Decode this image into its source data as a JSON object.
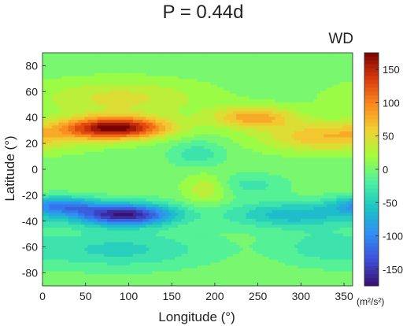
{
  "chart_data": {
    "type": "heatmap",
    "title": "P = 0.44d",
    "panel_label": "WD",
    "xlabel": "Longitude (°)",
    "ylabel": "Latitude (°)",
    "colorbar_unit": "(m²/s²)",
    "xlim": [
      0,
      360
    ],
    "ylim": [
      -90,
      90
    ],
    "xticks": [
      0,
      50,
      100,
      150,
      200,
      250,
      300,
      350
    ],
    "yticks": [
      -80,
      -60,
      -40,
      -20,
      0,
      20,
      40,
      60,
      80
    ],
    "clim": [
      -175,
      175
    ],
    "colorbar_ticks": [
      -150,
      -100,
      -50,
      0,
      50,
      100,
      150
    ],
    "colormap": [
      "#3b0f6f",
      "#3e4fd8",
      "#2f8ef4",
      "#1cc3c6",
      "#4cf0a0",
      "#a3fd3d",
      "#f1d132",
      "#fb8a1d",
      "#d9390b",
      "#7a0403"
    ],
    "features": [
      {
        "name": "north band",
        "lon": 85,
        "lat": 32,
        "amp": 175,
        "lon_width": 42,
        "lat_width": 6
      },
      {
        "name": "north band east",
        "lon": 330,
        "lat": 25,
        "amp": 70,
        "lon_width": 55,
        "lat_width": 8
      },
      {
        "name": "north band mid",
        "lon": 245,
        "lat": 40,
        "amp": 80,
        "lon_width": 35,
        "lat_width": 6
      },
      {
        "name": "south band",
        "lon": 95,
        "lat": -35,
        "amp": -170,
        "lon_width": 40,
        "lat_width": 6
      },
      {
        "name": "south band west",
        "lon": 20,
        "lat": -28,
        "amp": -90,
        "lon_width": 30,
        "lat_width": 5
      },
      {
        "name": "south band east",
        "lon": 290,
        "lat": -35,
        "amp": -65,
        "lon_width": 55,
        "lat_width": 7
      },
      {
        "name": "north high",
        "lon": 90,
        "lat": 55,
        "amp": 45,
        "lon_width": 70,
        "lat_width": 10
      },
      {
        "name": "south low",
        "lon": 90,
        "lat": -62,
        "amp": -45,
        "lon_width": 70,
        "lat_width": 10
      },
      {
        "name": "south low east",
        "lon": 320,
        "lat": -60,
        "amp": -25,
        "lon_width": 40,
        "lat_width": 10
      },
      {
        "name": "centre warm",
        "lon": 190,
        "lat": -15,
        "amp": 40,
        "lon_width": 18,
        "lat_width": 8
      },
      {
        "name": "centre cool",
        "lon": 180,
        "lat": 12,
        "amp": -35,
        "lon_width": 22,
        "lat_width": 7
      },
      {
        "name": "south east cool",
        "lon": 240,
        "lat": -12,
        "amp": -30,
        "lon_width": 30,
        "lat_width": 6
      }
    ]
  }
}
